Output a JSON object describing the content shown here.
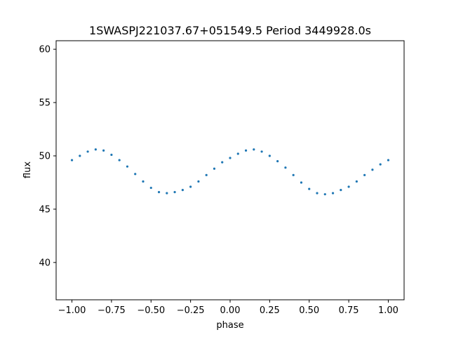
{
  "chart_data": {
    "type": "scatter",
    "title": "1SWASPJ221037.67+051549.5 Period 3449928.0s",
    "xlabel": "phase",
    "ylabel": "flux",
    "xlim": [
      -1.1,
      1.1
    ],
    "ylim": [
      36.5,
      60.8
    ],
    "xticks": [
      -1.0,
      -0.75,
      -0.5,
      -0.25,
      0.0,
      0.25,
      0.5,
      0.75,
      1.0
    ],
    "xtick_labels": [
      "−1.00",
      "−0.75",
      "−0.50",
      "−0.25",
      "0.00",
      "0.25",
      "0.50",
      "0.75",
      "1.00"
    ],
    "yticks": [
      40,
      45,
      50,
      55,
      60
    ],
    "ytick_labels": [
      "40",
      "45",
      "50",
      "55",
      "60"
    ],
    "grid": false,
    "marker_color": "#1f77b4",
    "series": [
      {
        "x": [
          -1.0,
          -0.95,
          -0.9,
          -0.85,
          -0.8,
          -0.75,
          -0.7,
          -0.65,
          -0.6,
          -0.55,
          -0.5,
          -0.45,
          -0.4,
          -0.35,
          -0.3,
          -0.25,
          -0.2,
          -0.15,
          -0.1,
          -0.05,
          0.0,
          0.05,
          0.1,
          0.15,
          0.2,
          0.25,
          0.3,
          0.35,
          0.4,
          0.45,
          0.5,
          0.55,
          0.6,
          0.65,
          0.7,
          0.75,
          0.8,
          0.85,
          0.9,
          0.95,
          1.0
        ],
        "y": [
          49.6,
          50.0,
          50.4,
          50.6,
          50.5,
          50.1,
          49.6,
          49.0,
          48.3,
          47.6,
          47.0,
          46.6,
          46.5,
          46.6,
          46.8,
          47.1,
          47.6,
          48.2,
          48.8,
          49.4,
          49.8,
          50.2,
          50.5,
          50.6,
          50.4,
          50.0,
          49.5,
          48.9,
          48.2,
          47.5,
          46.9,
          46.5,
          46.4,
          46.5,
          46.8,
          47.1,
          47.6,
          48.2,
          48.7,
          49.2,
          49.6
        ]
      }
    ],
    "annotations": []
  }
}
